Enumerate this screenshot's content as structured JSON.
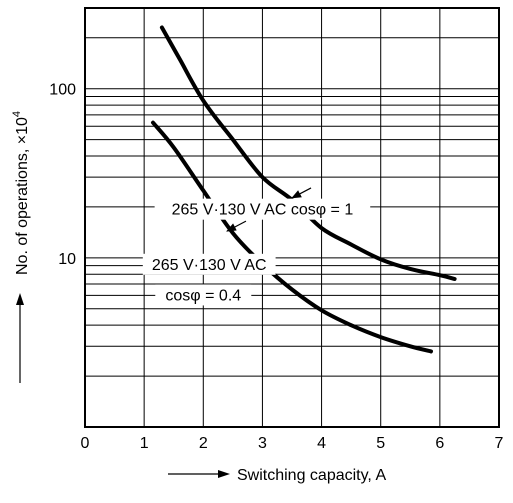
{
  "chart_data": {
    "type": "line",
    "title": "",
    "xlabel": "Switching capacity, A",
    "ylabel": "No. of operations, ×10",
    "ylabel_superscript": "4",
    "xscale": "linear",
    "yscale": "log",
    "xlim": [
      0,
      7
    ],
    "ylim": [
      1,
      300
    ],
    "grid": true,
    "x_ticks": [
      {
        "value": 0,
        "label": "0"
      },
      {
        "value": 1,
        "label": "1"
      },
      {
        "value": 2,
        "label": "2"
      },
      {
        "value": 3,
        "label": "3"
      },
      {
        "value": 4,
        "label": "4"
      },
      {
        "value": 5,
        "label": "5"
      },
      {
        "value": 6,
        "label": "6"
      },
      {
        "value": 7,
        "label": "7"
      }
    ],
    "y_ticks": [
      {
        "value": 10,
        "label": "10"
      },
      {
        "value": 100,
        "label": "100"
      }
    ],
    "y_minor_grid": [
      2,
      3,
      4,
      5,
      6,
      7,
      8,
      9,
      20,
      30,
      40,
      50,
      60,
      70,
      80,
      90,
      200
    ],
    "series": [
      {
        "name": "",
        "color": "#000000",
        "x": [
          1.3,
          1.6,
          2.0,
          2.5,
          3.0,
          3.5,
          4.0,
          4.5,
          5.0,
          5.5,
          6.0,
          6.25
        ],
        "y": [
          230,
          150,
          85,
          50,
          30,
          22,
          15,
          12,
          9.8,
          8.6,
          7.9,
          7.5
        ]
      },
      {
        "name": "",
        "color": "#000000",
        "x": [
          1.15,
          1.5,
          2.0,
          2.5,
          3.0,
          3.5,
          4.0,
          4.5,
          5.0,
          5.5,
          5.85
        ],
        "y": [
          63,
          45,
          25,
          14,
          9.2,
          6.5,
          4.9,
          4.0,
          3.4,
          3.0,
          2.8
        ]
      }
    ],
    "annotations": [
      {
        "text": "265 V·130 V AC cosφ = 1",
        "x": 3.0,
        "y": 18,
        "arrow_to": [
          3.45,
          22
        ]
      },
      {
        "text": "265 V·130 V AC",
        "x": 2.1,
        "y": 8.5,
        "arrow_to": [
          2.35,
          14
        ]
      },
      {
        "text": "cosφ = 0.4",
        "x": 2.0,
        "y": 5.6
      }
    ]
  }
}
